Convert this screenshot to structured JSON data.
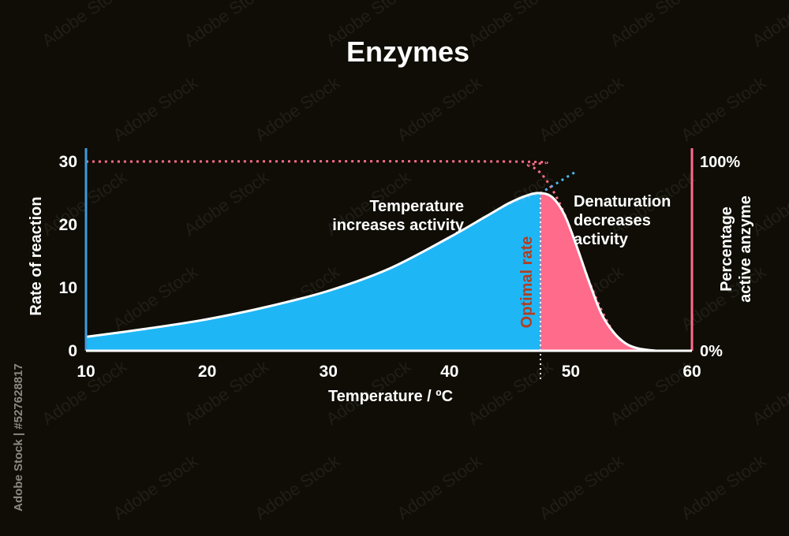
{
  "watermark": {
    "brand": "Adobe Stock",
    "side_id": "Adobe Stock | #527628817"
  },
  "chart_data": {
    "type": "area",
    "title": "Enzymes",
    "xlabel": "Temperature / ºC",
    "ylabel": "Rate of reaction",
    "y2label_line1": "Percentage",
    "y2label_line2": "active anzyme",
    "xlim": [
      10,
      60
    ],
    "ylim": [
      0,
      30
    ],
    "x_ticks": [
      "10",
      "20",
      "30",
      "40",
      "50",
      "60"
    ],
    "y_ticks": [
      "0",
      "10",
      "20",
      "30"
    ],
    "y2_ticks": [
      "0%",
      "100%"
    ],
    "optimum_x": 47.5,
    "annotations": {
      "increase_line1": "Temperature",
      "increase_line2": "increases activity",
      "denature_line1": "Denaturation",
      "denature_line2": "decreases",
      "denature_line3": "activity",
      "optimal": "Optimal rate"
    },
    "series": [
      {
        "name": "",
        "x": [
          10,
          15,
          20,
          25,
          30,
          35,
          40,
          43,
          45,
          46.5,
          47.5,
          48.5,
          49.5,
          50.5,
          51.5,
          52.5,
          53.5,
          54.5,
          55.5,
          57
        ],
        "y": [
          2.2,
          3.5,
          5.0,
          7.0,
          9.5,
          13.0,
          18.0,
          21.3,
          23.5,
          24.7,
          25.0,
          24.3,
          21.5,
          16.5,
          11.0,
          6.0,
          3.0,
          1.2,
          0.4,
          0.0
        ]
      },
      {
        "name": "",
        "style": "dotted",
        "x": [
          10,
          45,
          46.5,
          47.5,
          48.5,
          49.5,
          50.5,
          51.5,
          52.5,
          53.5,
          54.5
        ],
        "y": [
          100,
          100,
          98,
          94,
          85,
          72,
          55,
          37,
          22,
          10,
          3
        ]
      },
      {
        "name": "",
        "style": "dotted-extension",
        "x": [
          44.5,
          47.5,
          50.5
        ],
        "y": [
          23.0,
          25.0,
          28.5
        ]
      }
    ],
    "colors": {
      "increase_fill": "#1fb6f5",
      "denature_fill": "#ff6b8b",
      "curve": "#ffffff",
      "left_axis": "#3d9be0",
      "right_axis": "#ff6b8b",
      "dotted_active": "#ff6b8b",
      "dotted_extension": "#4fb4f0",
      "optimal_label": "#b33e1f",
      "text": "#ffffff"
    }
  }
}
